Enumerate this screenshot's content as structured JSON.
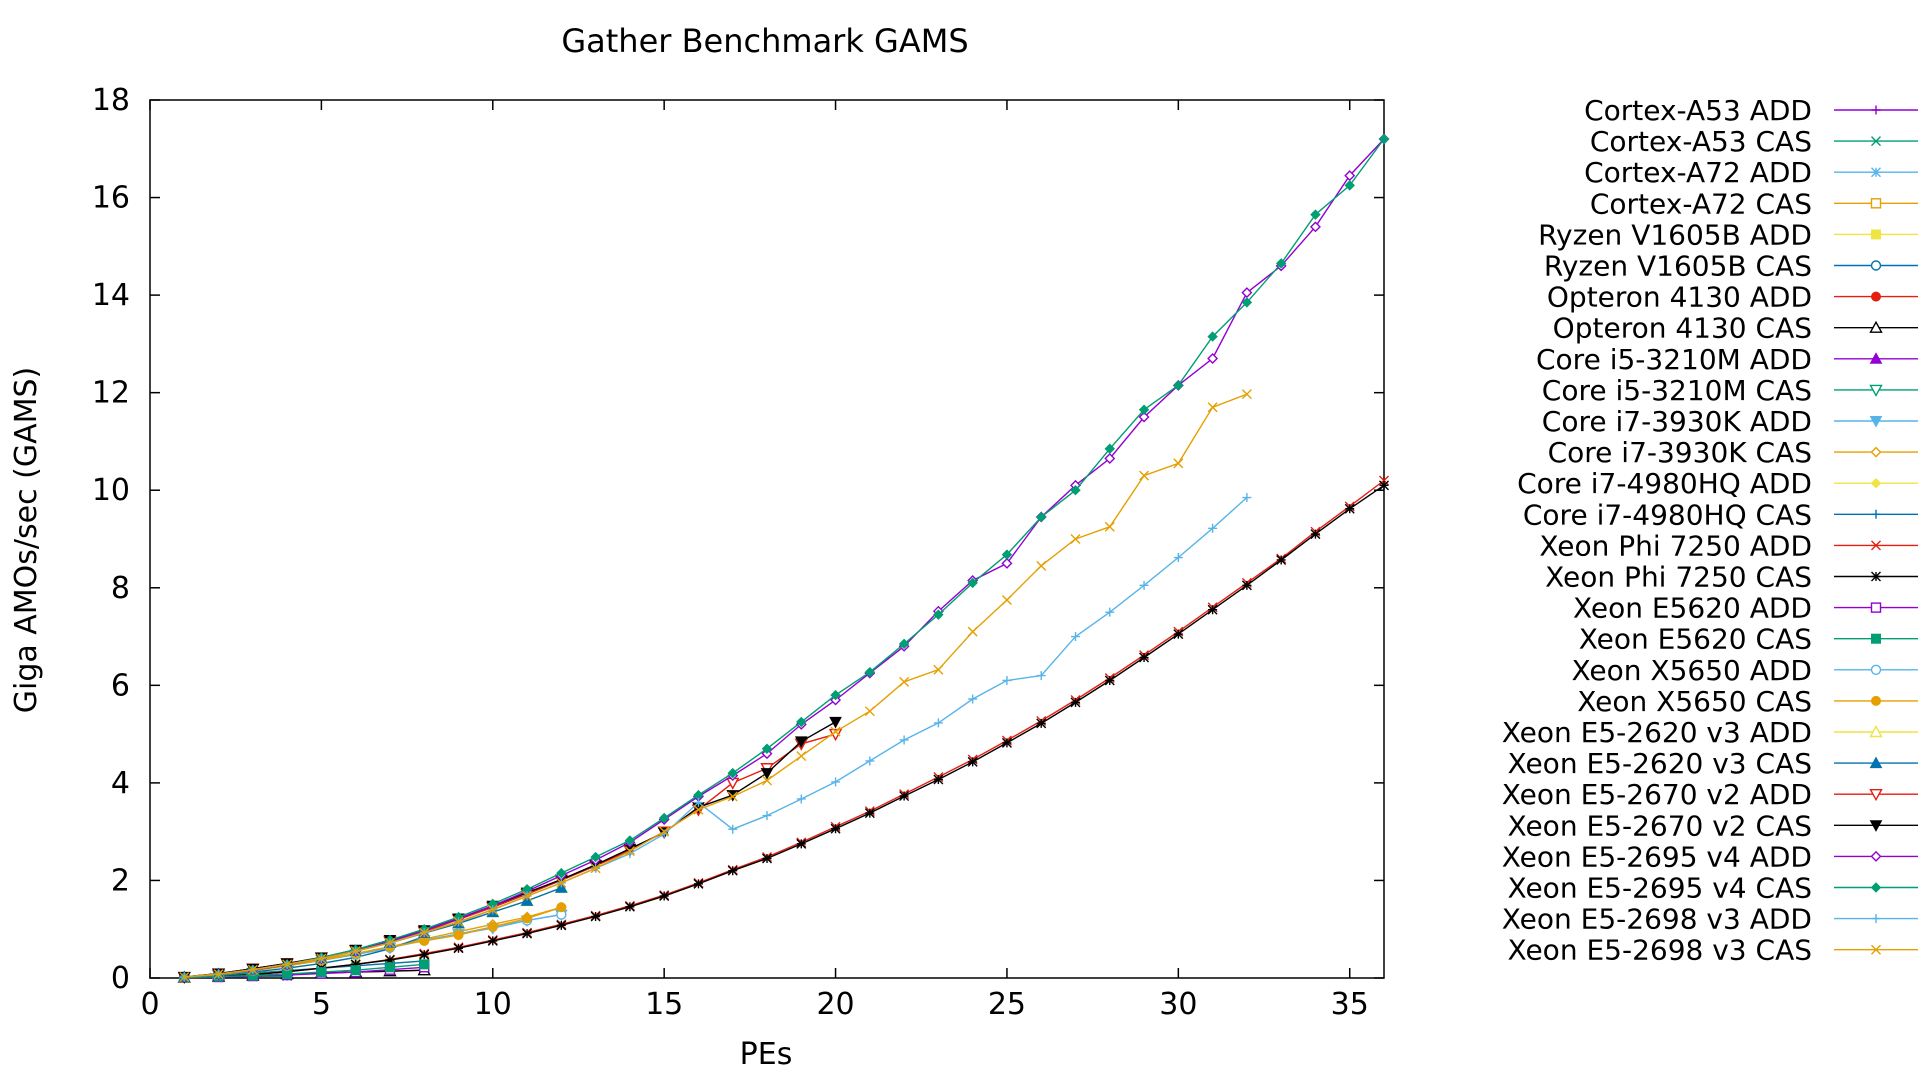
{
  "chart_data": {
    "type": "line",
    "title": "Gather Benchmark GAMS",
    "xlabel": "PEs",
    "ylabel": "Giga AMOs/sec (GAMS)",
    "xlim": [
      0,
      36
    ],
    "ylim": [
      0,
      18
    ],
    "xticks": [
      0,
      5,
      10,
      15,
      20,
      25,
      30,
      35
    ],
    "yticks": [
      0,
      2,
      4,
      6,
      8,
      10,
      12,
      14,
      16,
      18
    ],
    "grid": false,
    "legend_position": "right",
    "series": [
      {
        "name": "Cortex-A53 ADD",
        "color": "#9400d3",
        "marker": "plus",
        "x": [
          1,
          2,
          3,
          4
        ],
        "y": [
          0.01,
          0.02,
          0.03,
          0.04
        ]
      },
      {
        "name": "Cortex-A53 CAS",
        "color": "#009e73",
        "marker": "cross",
        "x": [
          1,
          2,
          3,
          4
        ],
        "y": [
          0.01,
          0.02,
          0.03,
          0.04
        ]
      },
      {
        "name": "Cortex-A72 ADD",
        "color": "#56b4e9",
        "marker": "star",
        "x": [
          1,
          2,
          3,
          4
        ],
        "y": [
          0.01,
          0.03,
          0.05,
          0.07
        ]
      },
      {
        "name": "Cortex-A72 CAS",
        "color": "#e69f00",
        "marker": "square-open",
        "x": [
          1,
          2,
          3,
          4
        ],
        "y": [
          0.01,
          0.03,
          0.05,
          0.07
        ]
      },
      {
        "name": "Ryzen V1605B ADD",
        "color": "#f0e442",
        "marker": "square",
        "x": [
          1,
          2,
          3,
          4,
          5,
          6,
          7,
          8
        ],
        "y": [
          0.02,
          0.05,
          0.1,
          0.15,
          0.2,
          0.25,
          0.3,
          0.35
        ]
      },
      {
        "name": "Ryzen V1605B CAS",
        "color": "#0072b2",
        "marker": "circle-open",
        "x": [
          1,
          2,
          3,
          4,
          5,
          6,
          7,
          8
        ],
        "y": [
          0.02,
          0.05,
          0.1,
          0.15,
          0.2,
          0.25,
          0.3,
          0.35
        ]
      },
      {
        "name": "Opteron 4130 ADD",
        "color": "#e51e10",
        "marker": "circle",
        "x": [
          1,
          2,
          3,
          4,
          5,
          6,
          7,
          8
        ],
        "y": [
          0.01,
          0.03,
          0.05,
          0.08,
          0.1,
          0.12,
          0.14,
          0.16
        ]
      },
      {
        "name": "Opteron 4130 CAS",
        "color": "#000000",
        "marker": "triangle-open",
        "x": [
          1,
          2,
          3,
          4,
          5,
          6,
          7,
          8
        ],
        "y": [
          0.01,
          0.03,
          0.05,
          0.08,
          0.1,
          0.12,
          0.14,
          0.16
        ]
      },
      {
        "name": "Core i5-3210M ADD",
        "color": "#9400d3",
        "marker": "triangle",
        "x": [
          1,
          2,
          3,
          4
        ],
        "y": [
          0.02,
          0.06,
          0.1,
          0.14
        ]
      },
      {
        "name": "Core i5-3210M CAS",
        "color": "#009e73",
        "marker": "triangle-down-open",
        "x": [
          1,
          2,
          3,
          4
        ],
        "y": [
          0.02,
          0.06,
          0.1,
          0.14
        ]
      },
      {
        "name": "Core i7-3930K ADD",
        "color": "#56b4e9",
        "marker": "triangle-down",
        "x": [
          1,
          2,
          3,
          4,
          5,
          6,
          7,
          8,
          9,
          10,
          11,
          12
        ],
        "y": [
          0.02,
          0.08,
          0.18,
          0.28,
          0.38,
          0.48,
          0.62,
          0.78,
          0.9,
          1.02,
          1.18,
          1.3
        ]
      },
      {
        "name": "Core i7-3930K CAS",
        "color": "#e69f00",
        "marker": "diamond-open",
        "x": [
          1,
          2,
          3,
          4,
          5,
          6,
          7,
          8,
          9,
          10,
          11,
          12
        ],
        "y": [
          0.02,
          0.08,
          0.18,
          0.28,
          0.38,
          0.5,
          0.64,
          0.8,
          0.95,
          1.1,
          1.25,
          1.45
        ]
      },
      {
        "name": "Core i7-4980HQ ADD",
        "color": "#f0e442",
        "marker": "diamond",
        "x": [
          1,
          2,
          3,
          4,
          5,
          6,
          7,
          8
        ],
        "y": [
          0.02,
          0.06,
          0.12,
          0.2,
          0.3,
          0.42,
          0.6,
          0.85
        ]
      },
      {
        "name": "Core i7-4980HQ CAS",
        "color": "#0072b2",
        "marker": "plus",
        "x": [
          1,
          2,
          3,
          4,
          5,
          6,
          7,
          8
        ],
        "y": [
          0.02,
          0.06,
          0.12,
          0.2,
          0.3,
          0.42,
          0.6,
          0.85
        ]
      },
      {
        "name": "Xeon Phi 7250 ADD",
        "color": "#e51e10",
        "marker": "cross",
        "x": [
          1,
          2,
          3,
          4,
          5,
          6,
          7,
          8,
          9,
          10,
          11,
          12,
          13,
          14,
          15,
          16,
          17,
          18,
          19,
          20,
          21,
          22,
          23,
          24,
          25,
          26,
          27,
          28,
          29,
          30,
          31,
          32,
          33,
          34,
          35,
          36
        ],
        "y": [
          0.0,
          0.03,
          0.07,
          0.13,
          0.2,
          0.28,
          0.38,
          0.5,
          0.63,
          0.78,
          0.93,
          1.1,
          1.28,
          1.48,
          1.7,
          1.95,
          2.22,
          2.48,
          2.78,
          3.1,
          3.42,
          3.77,
          4.12,
          4.48,
          4.87,
          5.27,
          5.7,
          6.15,
          6.62,
          7.1,
          7.6,
          8.1,
          8.6,
          9.15,
          9.67,
          10.2
        ]
      },
      {
        "name": "Xeon Phi 7250 CAS",
        "color": "#000000",
        "marker": "star",
        "x": [
          1,
          2,
          3,
          4,
          5,
          6,
          7,
          8,
          9,
          10,
          11,
          12,
          13,
          14,
          15,
          16,
          17,
          18,
          19,
          20,
          21,
          22,
          23,
          24,
          25,
          26,
          27,
          28,
          29,
          30,
          31,
          32,
          33,
          34,
          35,
          36
        ],
        "y": [
          0.0,
          0.03,
          0.07,
          0.13,
          0.2,
          0.28,
          0.37,
          0.48,
          0.61,
          0.76,
          0.91,
          1.08,
          1.26,
          1.46,
          1.68,
          1.93,
          2.2,
          2.45,
          2.75,
          3.06,
          3.38,
          3.73,
          4.07,
          4.43,
          4.82,
          5.22,
          5.65,
          6.1,
          6.57,
          7.05,
          7.55,
          8.05,
          8.57,
          9.1,
          9.62,
          10.1
        ]
      },
      {
        "name": "Xeon E5620 ADD",
        "color": "#9400d3",
        "marker": "square-open",
        "x": [
          1,
          2,
          3,
          4,
          5,
          6,
          7,
          8
        ],
        "y": [
          0.01,
          0.02,
          0.04,
          0.06,
          0.09,
          0.12,
          0.17,
          0.22
        ]
      },
      {
        "name": "Xeon E5620 CAS",
        "color": "#009e73",
        "marker": "square",
        "x": [
          1,
          2,
          3,
          4,
          5,
          6,
          7,
          8
        ],
        "y": [
          0.01,
          0.03,
          0.05,
          0.08,
          0.12,
          0.16,
          0.22,
          0.28
        ]
      },
      {
        "name": "Xeon X5650 ADD",
        "color": "#56b4e9",
        "marker": "circle-open",
        "x": [
          1,
          2,
          3,
          4,
          5,
          6,
          7,
          8,
          9,
          10,
          11,
          12
        ],
        "y": [
          0.02,
          0.07,
          0.15,
          0.25,
          0.36,
          0.48,
          0.62,
          0.77,
          0.9,
          1.05,
          1.18,
          1.3
        ]
      },
      {
        "name": "Xeon X5650 CAS",
        "color": "#e69f00",
        "marker": "circle",
        "x": [
          1,
          2,
          3,
          4,
          5,
          6,
          7,
          8,
          9,
          10,
          11,
          12
        ],
        "y": [
          0.02,
          0.07,
          0.15,
          0.25,
          0.36,
          0.5,
          0.64,
          0.76,
          0.88,
          1.05,
          1.22,
          1.45
        ]
      },
      {
        "name": "Xeon E5-2620 v3 ADD",
        "color": "#f0e442",
        "marker": "triangle-open",
        "x": [
          1,
          2,
          3,
          4,
          5,
          6,
          7,
          8,
          9,
          10,
          11,
          12
        ],
        "y": [
          0.02,
          0.08,
          0.17,
          0.28,
          0.4,
          0.55,
          0.72,
          0.92,
          1.12,
          1.35,
          1.58,
          1.85
        ]
      },
      {
        "name": "Xeon E5-2620 v3 CAS",
        "color": "#0072b2",
        "marker": "triangle",
        "x": [
          1,
          2,
          3,
          4,
          5,
          6,
          7,
          8,
          9,
          10,
          11,
          12
        ],
        "y": [
          0.02,
          0.08,
          0.17,
          0.28,
          0.4,
          0.55,
          0.72,
          0.92,
          1.12,
          1.35,
          1.58,
          1.85
        ]
      },
      {
        "name": "Xeon E5-2670 v2 ADD",
        "color": "#e51e10",
        "marker": "triangle-down-open",
        "x": [
          1,
          2,
          3,
          4,
          5,
          6,
          7,
          8,
          9,
          10,
          11,
          12,
          13,
          14,
          15,
          16,
          17,
          18,
          19,
          20
        ],
        "y": [
          0.02,
          0.09,
          0.19,
          0.3,
          0.42,
          0.57,
          0.75,
          0.95,
          1.2,
          1.45,
          1.72,
          2.0,
          2.3,
          2.62,
          3.0,
          3.45,
          4.0,
          4.3,
          4.8,
          5.0
        ]
      },
      {
        "name": "Xeon E5-2670 v2 CAS",
        "color": "#000000",
        "marker": "triangle-down",
        "x": [
          1,
          2,
          3,
          4,
          5,
          6,
          7,
          8,
          9,
          10,
          11,
          12,
          13,
          14,
          15,
          16,
          17,
          18,
          19,
          20
        ],
        "y": [
          0.02,
          0.09,
          0.19,
          0.3,
          0.42,
          0.58,
          0.78,
          0.98,
          1.22,
          1.48,
          1.75,
          2.02,
          2.32,
          2.65,
          2.98,
          3.5,
          3.75,
          4.2,
          4.85,
          5.25
        ]
      },
      {
        "name": "Xeon E5-2695 v4 ADD",
        "color": "#9400d3",
        "marker": "diamond-open",
        "x": [
          1,
          2,
          3,
          4,
          5,
          6,
          7,
          8,
          9,
          10,
          11,
          12,
          13,
          14,
          15,
          16,
          17,
          18,
          19,
          20,
          21,
          22,
          23,
          24,
          25,
          26,
          27,
          28,
          29,
          30,
          31,
          32,
          33,
          34,
          35,
          36
        ],
        "y": [
          0.02,
          0.08,
          0.16,
          0.27,
          0.4,
          0.55,
          0.75,
          0.97,
          1.22,
          1.48,
          1.78,
          2.1,
          2.42,
          2.78,
          3.25,
          3.72,
          4.15,
          4.6,
          5.2,
          5.7,
          6.25,
          6.8,
          7.52,
          8.15,
          8.5,
          9.45,
          10.1,
          10.65,
          11.5,
          12.15,
          12.7,
          14.05,
          14.6,
          15.4,
          16.45,
          17.2
        ]
      },
      {
        "name": "Xeon E5-2695 v4 CAS",
        "color": "#009e73",
        "marker": "diamond",
        "x": [
          1,
          2,
          3,
          4,
          5,
          6,
          7,
          8,
          9,
          10,
          11,
          12,
          13,
          14,
          15,
          16,
          17,
          18,
          19,
          20,
          21,
          22,
          23,
          24,
          25,
          26,
          27,
          28,
          29,
          30,
          31,
          32,
          33,
          34,
          35,
          36
        ],
        "y": [
          0.02,
          0.08,
          0.17,
          0.28,
          0.42,
          0.58,
          0.78,
          1.0,
          1.25,
          1.52,
          1.82,
          2.15,
          2.48,
          2.82,
          3.28,
          3.75,
          4.2,
          4.7,
          5.25,
          5.8,
          6.27,
          6.85,
          7.45,
          8.1,
          8.68,
          9.45,
          10.0,
          10.85,
          11.65,
          12.15,
          13.15,
          13.85,
          14.65,
          15.65,
          16.25,
          17.2
        ]
      },
      {
        "name": "Xeon E5-2698 v3 ADD",
        "color": "#56b4e9",
        "marker": "plus",
        "x": [
          1,
          2,
          3,
          4,
          5,
          6,
          7,
          8,
          9,
          10,
          11,
          12,
          13,
          14,
          15,
          16,
          17,
          18,
          19,
          20,
          21,
          22,
          23,
          24,
          25,
          26,
          27,
          28,
          29,
          30,
          31,
          32
        ],
        "y": [
          0.02,
          0.08,
          0.17,
          0.28,
          0.4,
          0.55,
          0.72,
          0.93,
          1.15,
          1.4,
          1.68,
          1.95,
          2.25,
          2.55,
          2.95,
          3.6,
          3.05,
          3.33,
          3.67,
          4.02,
          4.45,
          4.88,
          5.23,
          5.72,
          6.1,
          6.2,
          7.0,
          7.5,
          8.05,
          8.62,
          9.22,
          9.85
        ]
      },
      {
        "name": "Xeon E5-2698 v3 CAS",
        "color": "#e69f00",
        "marker": "cross",
        "x": [
          1,
          2,
          3,
          4,
          5,
          6,
          7,
          8,
          9,
          10,
          11,
          12,
          13,
          14,
          15,
          16,
          17,
          18,
          19,
          20,
          21,
          22,
          23,
          24,
          25,
          26,
          27,
          28,
          29,
          30,
          31,
          32
        ],
        "y": [
          0.02,
          0.08,
          0.17,
          0.28,
          0.4,
          0.55,
          0.72,
          0.93,
          1.15,
          1.4,
          1.68,
          1.95,
          2.25,
          2.6,
          3.0,
          3.45,
          3.72,
          4.05,
          4.55,
          5.05,
          5.47,
          6.07,
          6.32,
          7.1,
          7.75,
          8.45,
          9.0,
          9.25,
          10.3,
          10.55,
          11.7,
          11.97
        ]
      }
    ]
  }
}
